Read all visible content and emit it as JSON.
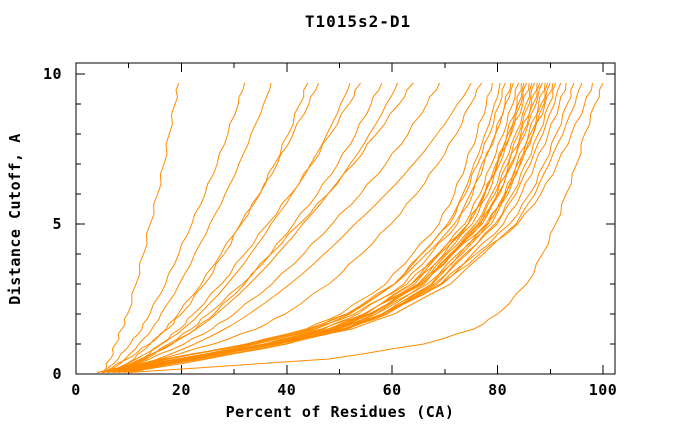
{
  "chart_data": {
    "type": "line",
    "title": "T1015s2-D1",
    "xlabel": "Percent of Residues (CA)",
    "ylabel": "Distance Cutoff, A",
    "xlim": [
      0,
      100
    ],
    "ylim": [
      0,
      10
    ],
    "x_ticks_major": [
      0,
      20,
      40,
      60,
      80,
      100
    ],
    "x_ticks_minor": [
      10,
      30,
      50,
      70,
      90
    ],
    "y_ticks_major": [
      0,
      5,
      10
    ],
    "y_ticks_minor": [
      1,
      2,
      3,
      4,
      6,
      7,
      8,
      9
    ],
    "grid": false,
    "legend": false,
    "line_color": "#ff8c00",
    "frame_color": "#000000",
    "cutoffs": [
      0.05,
      0.5,
      1,
      1.5,
      2,
      3,
      4,
      5,
      6,
      7,
      8,
      9,
      9.7
    ],
    "series": [
      [
        5,
        6.5,
        7.5,
        8.7,
        9.8,
        11.4,
        12.8,
        14.1,
        15.5,
        16.7,
        17.7,
        18.8,
        19.5
      ],
      [
        5.5,
        8,
        10.3,
        12.5,
        14,
        17,
        19.5,
        22,
        24.5,
        26.8,
        28.8,
        30.8,
        32
      ],
      [
        6,
        9.3,
        11.9,
        14.4,
        16.1,
        19.6,
        22.5,
        25.4,
        28.3,
        30.9,
        33.2,
        35.6,
        37
      ],
      [
        5,
        9.7,
        13.9,
        17.4,
        20,
        24.4,
        28.1,
        31.4,
        34.8,
        37.7,
        40.3,
        42.5,
        44
      ],
      [
        7,
        11,
        14.1,
        17.1,
        19.4,
        23.8,
        27.5,
        31.2,
        34.9,
        38.2,
        41.2,
        44.2,
        46
      ],
      [
        6,
        11.4,
        16.3,
        20.3,
        23.4,
        28.7,
        33.1,
        37,
        41,
        44.5,
        47.6,
        50.2,
        52
      ],
      [
        8,
        12.5,
        16.1,
        19.7,
        22.3,
        27.6,
        32,
        36.4,
        40.8,
        44.8,
        48.3,
        51.8,
        54
      ],
      [
        7,
        12.9,
        18.3,
        22.7,
        26.2,
        32,
        36.9,
        41.3,
        45.8,
        49.7,
        53.1,
        56,
        58
      ],
      [
        6,
        12.3,
        18.1,
        22.8,
        26.6,
        32.9,
        38.2,
        43,
        47.8,
        52,
        55.7,
        58.9,
        61
      ],
      [
        8,
        13.3,
        17.6,
        21.9,
        25.1,
        31.6,
        37,
        42.4,
        47.8,
        52.7,
        57,
        61.3,
        64
      ],
      [
        7,
        14,
        20.5,
        25.8,
        30,
        37.2,
        43.2,
        48.6,
        54,
        58.8,
        63,
        66.6,
        69
      ],
      [
        8,
        15.5,
        22.5,
        28.2,
        32.8,
        40.6,
        47.1,
        52.9,
        58.8,
        64,
        68.5,
        72.4,
        75
      ],
      [
        6,
        16,
        26.1,
        34.2,
        39.7,
        48,
        54.2,
        59.8,
        64.6,
        68.7,
        72.2,
        74.9,
        77
      ],
      [
        5,
        17.5,
        32.4,
        43.7,
        50.2,
        58.8,
        63.9,
        68.9,
        71.8,
        74,
        76.1,
        77.9,
        79
      ],
      [
        7,
        19.4,
        34.2,
        45.5,
        51.9,
        60.5,
        65.5,
        70.5,
        73.4,
        75.5,
        77.6,
        79.4,
        80.5
      ],
      [
        4,
        17.1,
        32.7,
        44.5,
        51.3,
        60.4,
        65.6,
        70.9,
        73.9,
        76.2,
        78.5,
        80.4,
        81.5
      ],
      [
        8,
        20.6,
        35.6,
        47,
        53.5,
        62.2,
        67.3,
        72.4,
        75.3,
        77.4,
        79.6,
        81.4,
        82.5
      ],
      [
        6,
        17.5,
        32.3,
        44,
        51.5,
        60.5,
        66.5,
        71.8,
        74.8,
        77,
        79.6,
        81.5,
        83
      ],
      [
        9,
        21.7,
        36.8,
        48.2,
        54.8,
        63.6,
        68.7,
        73.8,
        76.7,
        78.9,
        81.1,
        82.9,
        84
      ],
      [
        5,
        19.9,
        36,
        48.1,
        55,
        64.3,
        69.8,
        74.4,
        77.5,
        79.9,
        81.8,
        83.7,
        84.5
      ],
      [
        7,
        20.2,
        35.9,
        47.8,
        54.6,
        63.7,
        69,
        74.4,
        77.4,
        79.7,
        82,
        83.9,
        85
      ],
      [
        10,
        22.8,
        38,
        49.5,
        56.1,
        64.9,
        70.1,
        75.2,
        78.2,
        80.4,
        82.6,
        84.4,
        85.5
      ],
      [
        4,
        17,
        32.7,
        45.2,
        52.8,
        62.8,
        68.8,
        74.4,
        77.6,
        80,
        82.4,
        84.8,
        86
      ],
      [
        8,
        21.2,
        37,
        49,
        55.9,
        65.1,
        70.4,
        75.8,
        78.9,
        81.1,
        83.4,
        85.4,
        86.5
      ],
      [
        6,
        20.4,
        36.7,
        49.1,
        56.2,
        65.7,
        71.2,
        76.3,
        79.5,
        81.9,
        84,
        86,
        87
      ],
      [
        9,
        22.2,
        38,
        50,
        56.9,
        66.1,
        71.4,
        76.8,
        79.9,
        82.1,
        84.4,
        86.4,
        87.5
      ],
      [
        7,
        19.9,
        36.2,
        48.5,
        55.6,
        65.5,
        71,
        76.5,
        80.1,
        82.5,
        84.7,
        86.7,
        88
      ],
      [
        5,
        19,
        35.8,
        48.6,
        55.9,
        65.7,
        71.4,
        77.1,
        80.4,
        82.8,
        85.2,
        87.3,
        88.5
      ],
      [
        10,
        24.9,
        40,
        51.3,
        58.2,
        67.4,
        72.8,
        78.2,
        81.3,
        83.6,
        85.9,
        87.8,
        89
      ],
      [
        6,
        20,
        36.8,
        49.6,
        56.9,
        66.7,
        72.4,
        78.1,
        81.4,
        83.8,
        86.2,
        88.3,
        89.5
      ],
      [
        8,
        21.8,
        38.3,
        50.8,
        58,
        67.6,
        73.2,
        78.8,
        82,
        84.4,
        86.8,
        88.8,
        90
      ],
      [
        4,
        16.8,
        33.4,
        46.6,
        54.6,
        65.2,
        71.5,
        77.8,
        81.6,
        84.2,
        86.7,
        89,
        90.5
      ],
      [
        7,
        21.1,
        38,
        50.8,
        58.2,
        68,
        73.8,
        79.5,
        82.8,
        85.3,
        87.7,
        89.8,
        91
      ],
      [
        9,
        23.8,
        39.7,
        51.5,
        58.8,
        68.5,
        74.2,
        79.9,
        83.5,
        86.2,
        88.6,
        90.8,
        92
      ],
      [
        6,
        20.6,
        38.1,
        51.4,
        59,
        69.2,
        75.2,
        81.1,
        84.5,
        87.1,
        89.6,
        91.7,
        93
      ],
      [
        8,
        21.7,
        38.2,
        50.6,
        58.2,
        69.2,
        75.9,
        82.3,
        86.1,
        88.8,
        91.1,
        93.2,
        94.5
      ],
      [
        5,
        20.2,
        38.5,
        52.4,
        60.4,
        71.1,
        77.3,
        83.5,
        87.1,
        89.8,
        92.4,
        94.7,
        96
      ],
      [
        7,
        20.5,
        37,
        49.9,
        58,
        69.5,
        76.6,
        83.8,
        88.2,
        91.3,
        94,
        96.5,
        98
      ],
      [
        10,
        48,
        66,
        75.5,
        80,
        85.5,
        88.5,
        91,
        93,
        95,
        96.5,
        98.5,
        100
      ]
    ]
  }
}
